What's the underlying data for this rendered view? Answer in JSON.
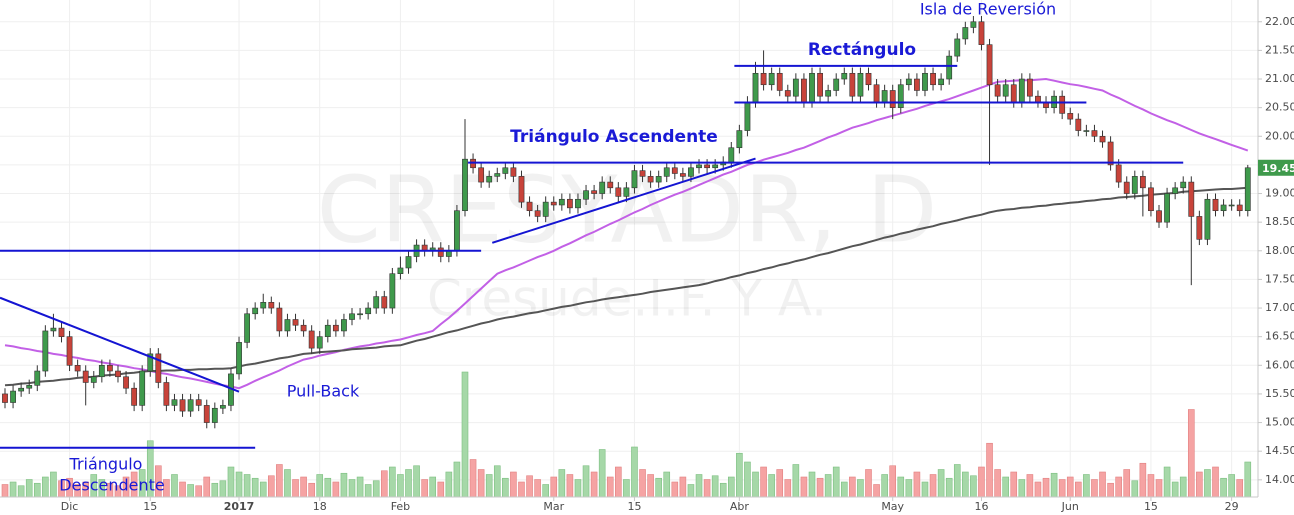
{
  "chart_data": {
    "type": "candlestick",
    "watermark": "CRESYADR, D",
    "watermark_subtitle": "Cresude.I.F. Y A.",
    "categories": [
      null,
      null,
      null,
      null,
      null,
      null,
      null,
      null,
      "Dic",
      null,
      null,
      null,
      null,
      null,
      null,
      null,
      null,
      null,
      "15",
      null,
      null,
      null,
      null,
      null,
      null,
      null,
      null,
      null,
      null,
      "2017",
      null,
      null,
      null,
      null,
      null,
      null,
      null,
      null,
      null,
      "18",
      null,
      null,
      null,
      null,
      null,
      null,
      null,
      null,
      null,
      "Feb",
      null,
      null,
      null,
      null,
      null,
      null,
      null,
      null,
      null,
      null,
      null,
      null,
      null,
      null,
      null,
      null,
      null,
      null,
      "Mar",
      null,
      null,
      null,
      null,
      null,
      null,
      null,
      null,
      null,
      "15",
      null,
      null,
      null,
      null,
      null,
      null,
      null,
      null,
      null,
      null,
      null,
      null,
      "Abr",
      null,
      null,
      null,
      null,
      null,
      null,
      null,
      null,
      null,
      null,
      null,
      null,
      null,
      null,
      null,
      null,
      null,
      null,
      "May",
      null,
      null,
      null,
      null,
      null,
      null,
      null,
      null,
      null,
      null,
      "16",
      null,
      null,
      null,
      null,
      null,
      null,
      null,
      null,
      null,
      null,
      "Jun",
      null,
      null,
      null,
      null,
      null,
      null,
      null,
      null,
      null,
      "15",
      null,
      null,
      null,
      null,
      null,
      null,
      null,
      null,
      null,
      "29",
      null,
      null
    ],
    "open": [
      15.5,
      15.35,
      15.55,
      15.6,
      15.65,
      15.9,
      16.6,
      16.65,
      16.5,
      16.0,
      15.9,
      15.7,
      15.8,
      16.0,
      15.9,
      15.8,
      15.6,
      15.3,
      15.9,
      16.2,
      15.7,
      15.3,
      15.4,
      15.2,
      15.4,
      15.3,
      15.0,
      15.25,
      15.3,
      15.85,
      16.4,
      16.9,
      17.0,
      17.1,
      17.0,
      16.6,
      16.8,
      16.7,
      16.6,
      16.3,
      16.5,
      16.7,
      16.6,
      16.8,
      16.9,
      16.9,
      17.0,
      17.2,
      17.0,
      17.6,
      17.7,
      17.9,
      18.1,
      18.0,
      18.05,
      17.9,
      18.0,
      18.7,
      19.6,
      19.45,
      19.2,
      19.3,
      19.35,
      19.45,
      19.3,
      18.85,
      18.7,
      18.6,
      18.85,
      18.8,
      18.9,
      18.75,
      18.9,
      19.05,
      19.0,
      19.2,
      19.1,
      18.95,
      19.1,
      19.4,
      19.3,
      19.2,
      19.3,
      19.45,
      19.35,
      19.3,
      19.45,
      19.5,
      19.45,
      19.5,
      19.55,
      19.8,
      20.1,
      20.6,
      21.1,
      20.9,
      21.1,
      20.8,
      20.7,
      21.0,
      20.6,
      21.1,
      20.7,
      20.8,
      21.0,
      21.1,
      20.7,
      21.1,
      20.9,
      20.6,
      20.8,
      20.5,
      20.9,
      21.0,
      20.8,
      21.1,
      20.9,
      21.0,
      21.4,
      21.7,
      21.9,
      22.0,
      21.6,
      20.9,
      20.7,
      20.9,
      20.6,
      21.0,
      20.7,
      20.6,
      20.5,
      20.7,
      20.4,
      20.3,
      20.1,
      20.1,
      20.0,
      19.9,
      19.5,
      19.2,
      19.0,
      19.3,
      19.1,
      18.7,
      18.5,
      19.0,
      19.1,
      19.2,
      18.6,
      18.2,
      18.9,
      18.7,
      18.8,
      18.8,
      18.7
    ],
    "high": [
      15.6,
      15.65,
      15.7,
      15.75,
      16.0,
      16.7,
      16.9,
      16.75,
      16.6,
      16.1,
      16.0,
      15.9,
      16.1,
      16.1,
      16.0,
      15.9,
      15.7,
      16.0,
      16.3,
      16.3,
      15.8,
      15.5,
      15.5,
      15.5,
      15.5,
      15.4,
      15.35,
      15.4,
      15.95,
      16.5,
      17.0,
      17.1,
      17.25,
      17.2,
      17.1,
      16.9,
      16.9,
      16.8,
      16.7,
      16.6,
      16.8,
      16.8,
      16.9,
      17.0,
      17.0,
      17.1,
      17.3,
      17.3,
      17.7,
      17.9,
      18.0,
      18.2,
      18.2,
      18.15,
      18.15,
      18.1,
      18.8,
      20.3,
      19.7,
      19.55,
      19.4,
      19.45,
      19.55,
      19.55,
      19.4,
      18.95,
      18.8,
      18.95,
      18.95,
      19.0,
      19.0,
      19.0,
      19.15,
      19.15,
      19.3,
      19.3,
      19.2,
      19.2,
      19.5,
      19.5,
      19.4,
      19.4,
      19.55,
      19.55,
      19.45,
      19.55,
      19.6,
      19.6,
      19.6,
      19.65,
      19.9,
      20.2,
      20.7,
      21.3,
      21.5,
      21.2,
      21.2,
      20.9,
      21.1,
      21.1,
      21.2,
      21.2,
      20.9,
      21.1,
      21.2,
      21.2,
      21.2,
      21.2,
      21.0,
      20.9,
      20.9,
      21.0,
      21.1,
      21.1,
      21.2,
      21.2,
      21.1,
      21.5,
      21.8,
      22.0,
      22.1,
      22.1,
      21.7,
      21.0,
      21.0,
      21.0,
      21.1,
      21.1,
      20.8,
      20.7,
      20.8,
      20.8,
      20.5,
      20.4,
      20.2,
      20.2,
      20.1,
      20.0,
      19.6,
      19.3,
      19.4,
      19.4,
      19.2,
      18.8,
      19.1,
      19.2,
      19.3,
      19.3,
      18.7,
      19.0,
      19.0,
      18.9,
      18.9,
      18.9,
      19.5
    ],
    "low": [
      15.25,
      15.25,
      15.45,
      15.5,
      15.55,
      15.8,
      16.5,
      16.4,
      15.9,
      15.8,
      15.3,
      15.6,
      15.7,
      15.8,
      15.7,
      15.5,
      15.2,
      15.2,
      15.8,
      15.6,
      15.2,
      15.2,
      15.1,
      15.1,
      15.2,
      14.9,
      14.9,
      15.15,
      15.2,
      15.75,
      16.3,
      16.8,
      16.9,
      16.9,
      16.5,
      16.5,
      16.6,
      16.5,
      16.2,
      16.2,
      16.4,
      16.5,
      16.5,
      16.7,
      16.8,
      16.8,
      16.9,
      16.9,
      16.9,
      17.5,
      17.6,
      17.8,
      17.9,
      17.9,
      17.8,
      17.8,
      17.9,
      18.6,
      19.35,
      19.1,
      19.1,
      19.2,
      19.25,
      19.2,
      18.75,
      18.6,
      18.5,
      18.5,
      18.7,
      18.7,
      18.65,
      18.65,
      18.8,
      18.9,
      18.9,
      19.0,
      18.85,
      18.85,
      19.0,
      19.2,
      19.1,
      19.1,
      19.2,
      19.25,
      19.2,
      19.2,
      19.35,
      19.35,
      19.35,
      19.4,
      19.45,
      19.7,
      20.0,
      20.5,
      20.8,
      20.8,
      20.7,
      20.6,
      20.6,
      20.5,
      20.5,
      20.6,
      20.6,
      20.7,
      20.9,
      20.6,
      20.6,
      20.8,
      20.5,
      20.5,
      20.3,
      20.4,
      20.8,
      20.7,
      20.7,
      20.8,
      20.8,
      20.9,
      21.3,
      21.6,
      21.8,
      21.5,
      19.5,
      20.6,
      20.6,
      20.5,
      20.5,
      20.6,
      20.5,
      20.4,
      20.4,
      20.3,
      20.2,
      20.0,
      20.0,
      19.9,
      19.8,
      19.4,
      19.1,
      18.9,
      18.9,
      18.6,
      18.6,
      18.4,
      18.4,
      18.9,
      19.0,
      17.4,
      18.1,
      18.1,
      18.6,
      18.6,
      18.7,
      18.6,
      18.6
    ],
    "close": [
      15.35,
      15.55,
      15.6,
      15.65,
      15.9,
      16.6,
      16.65,
      16.5,
      16.0,
      15.9,
      15.7,
      15.8,
      16.0,
      15.9,
      15.8,
      15.6,
      15.3,
      15.9,
      16.2,
      15.7,
      15.3,
      15.4,
      15.2,
      15.4,
      15.3,
      15.0,
      15.25,
      15.3,
      15.85,
      16.4,
      16.9,
      17.0,
      17.1,
      17.0,
      16.6,
      16.8,
      16.7,
      16.6,
      16.3,
      16.5,
      16.7,
      16.6,
      16.8,
      16.9,
      16.9,
      17.0,
      17.2,
      17.0,
      17.6,
      17.7,
      17.9,
      18.1,
      18.0,
      18.05,
      17.9,
      18.0,
      18.7,
      19.6,
      19.45,
      19.2,
      19.3,
      19.35,
      19.45,
      19.3,
      18.85,
      18.7,
      18.6,
      18.85,
      18.8,
      18.9,
      18.75,
      18.9,
      19.05,
      19.0,
      19.2,
      19.1,
      18.95,
      19.1,
      19.4,
      19.3,
      19.2,
      19.3,
      19.45,
      19.35,
      19.3,
      19.45,
      19.5,
      19.45,
      19.5,
      19.55,
      19.8,
      20.1,
      20.6,
      21.1,
      20.9,
      21.1,
      20.8,
      20.7,
      21.0,
      20.6,
      21.1,
      20.7,
      20.8,
      21.0,
      21.1,
      20.7,
      21.1,
      20.9,
      20.6,
      20.8,
      20.5,
      20.9,
      21.0,
      20.8,
      21.1,
      20.9,
      21.0,
      21.4,
      21.7,
      21.9,
      22.0,
      21.6,
      20.9,
      20.7,
      20.9,
      20.6,
      21.0,
      20.7,
      20.6,
      20.5,
      20.7,
      20.4,
      20.3,
      20.1,
      20.1,
      20.0,
      19.9,
      19.5,
      19.2,
      19.0,
      19.3,
      19.1,
      18.7,
      18.5,
      19.0,
      19.1,
      19.2,
      18.6,
      18.2,
      18.9,
      18.7,
      18.8,
      18.8,
      18.7,
      19.45
    ],
    "volume": [
      10,
      12,
      9,
      14,
      11,
      16,
      20,
      13,
      15,
      10,
      12,
      18,
      14,
      11,
      9,
      16,
      20,
      22,
      45,
      25,
      14,
      18,
      12,
      10,
      9,
      16,
      11,
      13,
      24,
      20,
      18,
      15,
      12,
      17,
      26,
      22,
      14,
      16,
      11,
      18,
      15,
      12,
      19,
      14,
      16,
      10,
      13,
      21,
      24,
      18,
      22,
      25,
      14,
      16,
      12,
      20,
      28,
      100,
      30,
      22,
      18,
      25,
      15,
      20,
      12,
      17,
      14,
      10,
      16,
      22,
      18,
      14,
      25,
      20,
      38,
      16,
      24,
      14,
      40,
      22,
      18,
      15,
      20,
      12,
      16,
      10,
      18,
      14,
      17,
      11,
      16,
      35,
      28,
      20,
      24,
      18,
      22,
      14,
      26,
      16,
      20,
      15,
      18,
      24,
      12,
      16,
      14,
      22,
      10,
      18,
      25,
      16,
      14,
      20,
      12,
      18,
      22,
      15,
      26,
      20,
      17,
      24,
      43,
      22,
      16,
      20,
      14,
      18,
      12,
      15,
      19,
      14,
      16,
      12,
      18,
      14,
      20,
      11,
      16,
      22,
      13,
      27,
      18,
      14,
      24,
      12,
      16,
      70,
      20,
      22,
      24,
      15,
      18,
      14,
      28
    ],
    "up_color": "#3f9a4c",
    "down_color": "#c8433a",
    "volume_up_color": "#a6d8a8",
    "volume_down_color": "#f5a3a3",
    "moving_averages": [
      {
        "color": "#c260e6",
        "values": [
          16.35,
          16.33,
          16.3,
          16.28,
          16.25,
          16.23,
          16.2,
          16.18,
          16.15,
          16.13,
          16.1,
          16.08,
          16.05,
          16.03,
          16.0,
          15.98,
          15.95,
          15.93,
          15.9,
          15.87,
          15.85,
          15.82,
          15.79,
          15.77,
          15.74,
          15.71,
          15.68,
          15.65,
          15.63,
          15.6,
          15.66,
          15.73,
          15.79,
          15.85,
          15.91,
          15.98,
          16.04,
          16.1,
          16.13,
          16.17,
          16.2,
          16.23,
          16.27,
          16.3,
          16.33,
          16.35,
          16.38,
          16.4,
          16.43,
          16.45,
          16.49,
          16.53,
          16.56,
          16.6,
          16.72,
          16.83,
          16.95,
          17.08,
          17.21,
          17.34,
          17.47,
          17.6,
          17.66,
          17.71,
          17.77,
          17.83,
          17.89,
          17.94,
          18.0,
          18.07,
          18.13,
          18.2,
          18.27,
          18.33,
          18.4,
          18.47,
          18.53,
          18.6,
          18.67,
          18.73,
          18.8,
          18.86,
          18.92,
          18.98,
          19.03,
          19.09,
          19.15,
          19.21,
          19.27,
          19.33,
          19.38,
          19.44,
          19.5,
          19.54,
          19.59,
          19.63,
          19.67,
          19.71,
          19.76,
          19.8,
          19.86,
          19.92,
          19.98,
          20.03,
          20.09,
          20.15,
          20.19,
          20.23,
          20.28,
          20.32,
          20.36,
          20.4,
          20.44,
          20.48,
          20.53,
          20.57,
          20.61,
          20.65,
          20.7,
          20.75,
          20.8,
          20.85,
          20.9,
          20.95,
          20.96,
          20.97,
          20.98,
          20.98,
          20.99,
          21.0,
          20.97,
          20.94,
          20.91,
          20.89,
          20.86,
          20.83,
          20.8,
          20.73,
          20.67,
          20.6,
          20.53,
          20.47,
          20.4,
          20.34,
          20.28,
          20.23,
          20.17,
          20.11,
          20.05,
          20.0,
          19.95,
          19.9,
          19.85,
          19.8,
          19.75
        ]
      },
      {
        "color": "#555555",
        "values": [
          15.65,
          15.66,
          15.68,
          15.69,
          15.71,
          15.72,
          15.73,
          15.75,
          15.76,
          15.78,
          15.79,
          15.8,
          15.82,
          15.83,
          15.84,
          15.86,
          15.87,
          15.89,
          15.9,
          15.9,
          15.91,
          15.91,
          15.92,
          15.92,
          15.93,
          15.93,
          15.94,
          15.94,
          15.95,
          15.98,
          16.01,
          16.03,
          16.06,
          16.09,
          16.12,
          16.14,
          16.17,
          16.2,
          16.21,
          16.23,
          16.24,
          16.25,
          16.26,
          16.28,
          16.29,
          16.3,
          16.31,
          16.33,
          16.34,
          16.35,
          16.39,
          16.43,
          16.46,
          16.5,
          16.54,
          16.58,
          16.61,
          16.65,
          16.69,
          16.73,
          16.76,
          16.8,
          16.83,
          16.85,
          16.88,
          16.91,
          16.93,
          16.96,
          16.99,
          17.02,
          17.04,
          17.07,
          17.1,
          17.12,
          17.15,
          17.17,
          17.19,
          17.21,
          17.23,
          17.25,
          17.28,
          17.3,
          17.32,
          17.34,
          17.36,
          17.38,
          17.4,
          17.43,
          17.47,
          17.5,
          17.54,
          17.57,
          17.61,
          17.64,
          17.68,
          17.71,
          17.75,
          17.78,
          17.82,
          17.85,
          17.89,
          17.93,
          17.96,
          18.0,
          18.04,
          18.08,
          18.11,
          18.15,
          18.19,
          18.23,
          18.26,
          18.3,
          18.33,
          18.37,
          18.4,
          18.43,
          18.47,
          18.5,
          18.53,
          18.57,
          18.6,
          18.63,
          18.67,
          18.7,
          18.72,
          18.73,
          18.75,
          18.76,
          18.78,
          18.79,
          18.81,
          18.82,
          18.84,
          18.85,
          18.87,
          18.88,
          18.9,
          18.91,
          18.93,
          18.94,
          18.95,
          18.96,
          18.98,
          18.99,
          19.0,
          19.01,
          19.03,
          19.04,
          19.05,
          19.06,
          19.07,
          19.08,
          19.08,
          19.09,
          19.1
        ]
      }
    ],
    "trendlines": [
      {
        "start": [
          0,
          18.0
        ],
        "end": [
          59,
          18.0
        ]
      },
      {
        "start": [
          0,
          17.18
        ],
        "end": [
          29,
          15.54
        ]
      },
      {
        "start": [
          0,
          14.56
        ],
        "end": [
          31,
          14.56
        ]
      },
      {
        "start": [
          58,
          19.54
        ],
        "end": [
          146,
          19.54
        ]
      },
      {
        "start": [
          61,
          18.14
        ],
        "end": [
          93,
          19.61
        ]
      },
      {
        "start": [
          91,
          21.23
        ],
        "end": [
          118,
          21.23
        ]
      },
      {
        "start": [
          91,
          20.59
        ],
        "end": [
          134,
          20.59
        ]
      }
    ],
    "trendline_color": "#1414d2",
    "annotations": [
      "Triángulo Ascendente",
      "Rectángulo",
      "Isla de Reversión",
      "Pull-Back",
      "Triángulo",
      "Descendente"
    ],
    "ylim": [
      13.7,
      22.38
    ],
    "yticks": [
      {
        "value": 14,
        "label": "14.00"
      },
      {
        "value": 14.5,
        "label": "14.50"
      },
      {
        "value": 15,
        "label": "15.00"
      },
      {
        "value": 15.5,
        "label": "15.50"
      },
      {
        "value": 16,
        "label": "16.00"
      },
      {
        "value": 16.5,
        "label": "16.50"
      },
      {
        "value": 17,
        "label": "17.00"
      },
      {
        "value": 17.5,
        "label": "17.50"
      },
      {
        "value": 18,
        "label": "18.00"
      },
      {
        "value": 18.5,
        "label": "18.50"
      },
      {
        "value": 19,
        "label": "19.00"
      },
      {
        "value": 19.5,
        "label": "19.50"
      },
      {
        "value": 20,
        "label": "20.00"
      },
      {
        "value": 20.5,
        "label": "20.50"
      },
      {
        "value": 21,
        "label": "21.00"
      },
      {
        "value": 21.5,
        "label": "21.50"
      },
      {
        "value": 22,
        "label": "22.00"
      }
    ],
    "grid": true
  }
}
